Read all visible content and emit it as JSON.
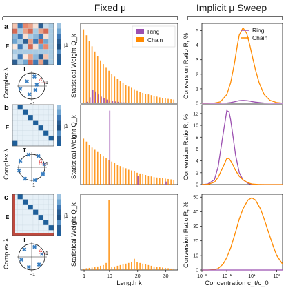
{
  "headers": {
    "fixed": "Fixed μ",
    "implicit": "Implicit μ Sweep"
  },
  "panel_letters": [
    "a",
    "b",
    "c"
  ],
  "matrix_labels": {
    "E": "E",
    "mu": "μ⃗",
    "T": "T",
    "complex": "Complex λ",
    "delta": "Δ",
    "one": "1",
    "minus_one": "−1"
  },
  "colors": {
    "ring": "#9b4fb0",
    "chain": "#ff8a00",
    "matrix_blue": "#1f5f9a",
    "matrix_light": "#e6f0f7",
    "matrix_red": "#c04a3f",
    "marker": "#3a7fc1"
  },
  "chart_data": [
    {
      "type": "bar",
      "panel": "a",
      "ylabel": "Statistical Weight Q_k",
      "xlabel": "",
      "legend": [
        "Ring",
        "Chain"
      ],
      "legend_placement": "top-right",
      "x": [
        1,
        2,
        3,
        4,
        5,
        6,
        7,
        8,
        9,
        10,
        11,
        12,
        13,
        14,
        15,
        16,
        17,
        18,
        19,
        20,
        21,
        22,
        23,
        24,
        25,
        26,
        27,
        28,
        29,
        30,
        31,
        32,
        33
      ],
      "series": [
        {
          "name": "Chain",
          "values": [
            1.0,
            0.92,
            0.84,
            0.77,
            0.7,
            0.64,
            0.58,
            0.53,
            0.48,
            0.44,
            0.4,
            0.36,
            0.33,
            0.3,
            0.27,
            0.25,
            0.23,
            0.21,
            0.19,
            0.17,
            0.15,
            0.14,
            0.13,
            0.12,
            0.11,
            0.1,
            0.09,
            0.08,
            0.07,
            0.065,
            0.06,
            0.055,
            0.05
          ]
        },
        {
          "name": "Ring",
          "values": [
            0.0,
            0.02,
            0.08,
            0.18,
            0.16,
            0.12,
            0.09,
            0.07,
            0.05,
            0.04,
            0.03,
            0.025,
            0.02,
            0.015,
            0.012,
            0.01,
            0.008,
            0.006,
            0.005,
            0.004,
            0.003,
            0.003,
            0.002,
            0.002,
            0.002,
            0.001,
            0.001,
            0.001,
            0.001,
            0.001,
            0.001,
            0.001,
            0.001
          ]
        }
      ]
    },
    {
      "type": "bar",
      "panel": "b",
      "ylabel": "Statistical Weight Q_k",
      "xlabel": "",
      "x": [
        1,
        2,
        3,
        4,
        5,
        6,
        7,
        8,
        9,
        10,
        11,
        12,
        13,
        14,
        15,
        16,
        17,
        18,
        19,
        20,
        21,
        22,
        23,
        24,
        25,
        26,
        27,
        28,
        29,
        30,
        31,
        32,
        33
      ],
      "series": [
        {
          "name": "Chain",
          "values": [
            0.62,
            0.58,
            0.54,
            0.5,
            0.47,
            0.44,
            0.41,
            0.38,
            0.36,
            0.33,
            0.31,
            0.29,
            0.27,
            0.25,
            0.23,
            0.22,
            0.2,
            0.19,
            0.18,
            0.16,
            0.15,
            0.14,
            0.13,
            0.12,
            0.11,
            0.1,
            0.095,
            0.09,
            0.085,
            0.08,
            0.075,
            0.07,
            0.065
          ]
        },
        {
          "name": "Ring",
          "values": [
            0,
            0,
            0,
            0,
            0,
            0,
            0,
            0,
            0,
            1.0,
            0,
            0,
            0,
            0,
            0,
            0,
            0,
            0,
            0,
            0.12,
            0,
            0,
            0,
            0,
            0,
            0,
            0,
            0,
            0,
            0.04,
            0,
            0,
            0
          ]
        }
      ]
    },
    {
      "type": "bar",
      "panel": "c",
      "ylabel": "Statistical Weight Q_k",
      "xlabel": "Length k",
      "xticks": [
        1,
        10,
        20,
        30
      ],
      "x": [
        1,
        2,
        3,
        4,
        5,
        6,
        7,
        8,
        9,
        10,
        11,
        12,
        13,
        14,
        15,
        16,
        17,
        18,
        19,
        20,
        21,
        22,
        23,
        24,
        25,
        26,
        27,
        28,
        29,
        30,
        31,
        32,
        33
      ],
      "series": [
        {
          "name": "Chain",
          "values": [
            0.02,
            0.025,
            0.03,
            0.035,
            0.04,
            0.05,
            0.06,
            0.07,
            0.1,
            1.0,
            0.04,
            0.05,
            0.06,
            0.07,
            0.08,
            0.09,
            0.1,
            0.11,
            0.16,
            0.11,
            0.1,
            0.09,
            0.08,
            0.07,
            0.06,
            0.05,
            0.045,
            0.04,
            0.035,
            0.03,
            0.025,
            0.02,
            0.02
          ]
        },
        {
          "name": "Ring",
          "values": [
            0,
            0,
            0,
            0,
            0,
            0,
            0,
            0,
            0,
            0,
            0,
            0,
            0,
            0,
            0,
            0,
            0,
            0,
            0,
            0,
            0,
            0,
            0,
            0,
            0,
            0,
            0,
            0,
            0,
            0,
            0,
            0,
            0
          ]
        }
      ]
    },
    {
      "type": "line",
      "panel": "a",
      "ylabel": "Conversion Ratio R, %",
      "ylim": [
        0,
        5.5
      ],
      "yticks": [
        0,
        1,
        2,
        3,
        4,
        5
      ],
      "xscale": "log",
      "xlim": [
        0.001,
        3000
      ],
      "legend": [
        "Ring",
        "Chain"
      ],
      "legend_placement": "top-right",
      "x": [
        0.001,
        0.003,
        0.01,
        0.03,
        0.1,
        0.2,
        0.4,
        0.7,
        1,
        2,
        4,
        7,
        10,
        20,
        40,
        100,
        300,
        1000,
        3000
      ],
      "series": [
        {
          "name": "Chain",
          "values": [
            0,
            0,
            0.02,
            0.1,
            0.6,
            1.4,
            2.7,
            4.0,
            4.7,
            5.2,
            4.8,
            4.0,
            3.4,
            2.3,
            1.4,
            0.6,
            0.2,
            0.05,
            0.01
          ]
        },
        {
          "name": "Ring",
          "values": [
            0,
            0,
            0,
            0,
            0.02,
            0.05,
            0.1,
            0.15,
            0.18,
            0.2,
            0.18,
            0.15,
            0.12,
            0.08,
            0.05,
            0.02,
            0.01,
            0,
            0
          ]
        }
      ]
    },
    {
      "type": "line",
      "panel": "b",
      "ylabel": "Conversion Ratio R, %",
      "ylim": [
        0,
        13.5
      ],
      "yticks": [
        0,
        2,
        4,
        6,
        8,
        10,
        12
      ],
      "xscale": "log",
      "xlim": [
        0.001,
        3000
      ],
      "x": [
        0.001,
        0.003,
        0.01,
        0.02,
        0.05,
        0.1,
        0.15,
        0.2,
        0.3,
        0.5,
        1,
        2,
        5,
        10,
        30,
        100,
        300,
        1000,
        3000
      ],
      "series": [
        {
          "name": "Ring",
          "values": [
            0,
            0.1,
            0.8,
            3.0,
            8.5,
            12.5,
            12.3,
            11.0,
            8.5,
            5.0,
            2.0,
            0.8,
            0.2,
            0.05,
            0,
            0,
            0,
            0,
            0
          ]
        },
        {
          "name": "Chain",
          "values": [
            0,
            0.05,
            0.4,
            1.2,
            3.0,
            4.4,
            4.4,
            4.0,
            3.4,
            2.4,
            1.4,
            0.8,
            0.3,
            0.1,
            0.02,
            0,
            0,
            0,
            0
          ]
        }
      ]
    },
    {
      "type": "line",
      "panel": "c",
      "ylabel": "Conversion Ratio R, %",
      "xlabel": "Concentration c_t/c_0",
      "ylim": [
        0,
        52
      ],
      "yticks": [
        0,
        10,
        20,
        30,
        40,
        50
      ],
      "xscale": "log",
      "xlim": [
        0.001,
        3000
      ],
      "xtick_labels": [
        "10⁻³",
        "10⁻¹",
        "10¹",
        "10³"
      ],
      "x": [
        0.001,
        0.003,
        0.01,
        0.02,
        0.05,
        0.1,
        0.2,
        0.5,
        1,
        2,
        5,
        10,
        20,
        50,
        100,
        200,
        500,
        1000,
        3000
      ],
      "series": [
        {
          "name": "Chain",
          "values": [
            0,
            0,
            0.3,
            1.0,
            4.0,
            8.5,
            15.0,
            26.0,
            35.0,
            42.0,
            48.0,
            49.5,
            48.0,
            42.0,
            35.0,
            27.0,
            17.0,
            10.0,
            4.0
          ]
        },
        {
          "name": "Ring",
          "values": [
            0,
            0,
            0,
            0,
            0,
            0,
            0,
            0,
            0,
            0,
            0,
            0,
            0,
            0,
            0,
            0,
            0,
            0,
            0
          ]
        }
      ]
    }
  ]
}
